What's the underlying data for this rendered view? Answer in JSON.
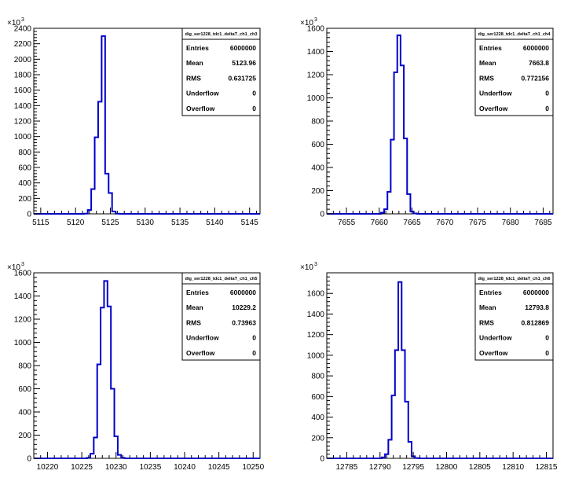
{
  "chart_data": [
    {
      "type": "histogram",
      "stats_title": "dig_ser1228_tdc1_deltaT_ch1_ch3",
      "stats": [
        {
          "label": "Entries",
          "value": "6000000"
        },
        {
          "label": "Mean",
          "value": "5123.96"
        },
        {
          "label": "RMS",
          "value": "0.631725"
        },
        {
          "label": "Underflow",
          "value": "0"
        },
        {
          "label": "Overflow",
          "value": "0"
        }
      ],
      "xlim": [
        5114,
        5146.5
      ],
      "ylim": [
        0,
        2400
      ],
      "xticks": [
        5115,
        5120,
        5125,
        5130,
        5135,
        5140,
        5145
      ],
      "yticks": [
        0,
        200,
        400,
        600,
        800,
        1000,
        1200,
        1400,
        1600,
        1800,
        2000,
        2200,
        2400
      ],
      "y_multiplier": "×10",
      "y_exponent": "3",
      "bin_width": 0.5,
      "bins": [
        {
          "x": 5121.5,
          "y": 2
        },
        {
          "x": 5122.0,
          "y": 50
        },
        {
          "x": 5122.5,
          "y": 320
        },
        {
          "x": 5123.0,
          "y": 990
        },
        {
          "x": 5123.5,
          "y": 1450
        },
        {
          "x": 5124.0,
          "y": 2300
        },
        {
          "x": 5124.5,
          "y": 520
        },
        {
          "x": 5125.0,
          "y": 270
        },
        {
          "x": 5125.5,
          "y": 30
        },
        {
          "x": 5126.0,
          "y": 3
        }
      ]
    },
    {
      "type": "histogram",
      "stats_title": "dig_ser1228_tdc1_deltaT_ch1_ch4",
      "stats": [
        {
          "label": "Entries",
          "value": "6000000"
        },
        {
          "label": "Mean",
          "value": "7663.8"
        },
        {
          "label": "RMS",
          "value": "0.772156"
        },
        {
          "label": "Underflow",
          "value": "0"
        },
        {
          "label": "Overflow",
          "value": "0"
        }
      ],
      "xlim": [
        7652,
        7686.5
      ],
      "ylim": [
        0,
        1600
      ],
      "xticks": [
        7655,
        7660,
        7665,
        7670,
        7675,
        7680,
        7685
      ],
      "yticks": [
        0,
        200,
        400,
        600,
        800,
        1000,
        1200,
        1400,
        1600
      ],
      "y_multiplier": "×10",
      "y_exponent": "3",
      "bin_width": 0.5,
      "bins": [
        {
          "x": 7660.5,
          "y": 10
        },
        {
          "x": 7661.0,
          "y": 40
        },
        {
          "x": 7661.5,
          "y": 190
        },
        {
          "x": 7662.0,
          "y": 640
        },
        {
          "x": 7662.5,
          "y": 1220
        },
        {
          "x": 7663.0,
          "y": 1540
        },
        {
          "x": 7663.5,
          "y": 1280
        },
        {
          "x": 7664.0,
          "y": 650
        },
        {
          "x": 7664.5,
          "y": 170
        },
        {
          "x": 7665.0,
          "y": 20
        },
        {
          "x": 7665.5,
          "y": 3
        }
      ]
    },
    {
      "type": "histogram",
      "stats_title": "dig_ser1228_tdc1_deltaT_ch1_ch5",
      "stats": [
        {
          "label": "Entries",
          "value": "6000000"
        },
        {
          "label": "Mean",
          "value": "10229.2"
        },
        {
          "label": "RMS",
          "value": "0.73963"
        },
        {
          "label": "Underflow",
          "value": "0"
        },
        {
          "label": "Overflow",
          "value": "0"
        }
      ],
      "xlim": [
        10218,
        10251
      ],
      "ylim": [
        0,
        1600
      ],
      "xticks": [
        10220,
        10225,
        10230,
        10235,
        10240,
        10245,
        10250
      ],
      "yticks": [
        0,
        200,
        400,
        600,
        800,
        1000,
        1200,
        1400,
        1600
      ],
      "y_multiplier": "×10",
      "y_exponent": "3",
      "bin_width": 0.5,
      "bins": [
        {
          "x": 10226.0,
          "y": 4
        },
        {
          "x": 10226.5,
          "y": 40
        },
        {
          "x": 10227.0,
          "y": 180
        },
        {
          "x": 10227.5,
          "y": 810
        },
        {
          "x": 10228.0,
          "y": 1300
        },
        {
          "x": 10228.5,
          "y": 1530
        },
        {
          "x": 10229.0,
          "y": 1310
        },
        {
          "x": 10229.5,
          "y": 600
        },
        {
          "x": 10230.0,
          "y": 190
        },
        {
          "x": 10230.5,
          "y": 30
        },
        {
          "x": 10231.0,
          "y": 4
        }
      ]
    },
    {
      "type": "histogram",
      "stats_title": "dig_ser1228_tdc1_deltaT_ch1_ch6",
      "stats": [
        {
          "label": "Entries",
          "value": "6000000"
        },
        {
          "label": "Mean",
          "value": "12793.8"
        },
        {
          "label": "RMS",
          "value": "0.812869"
        },
        {
          "label": "Underflow",
          "value": "0"
        },
        {
          "label": "Overflow",
          "value": "0"
        }
      ],
      "xlim": [
        12782,
        12816
      ],
      "ylim": [
        0,
        1800
      ],
      "xticks": [
        12785,
        12790,
        12795,
        12800,
        12805,
        12810,
        12815
      ],
      "yticks": [
        0,
        200,
        400,
        600,
        800,
        1000,
        1200,
        1400,
        1600
      ],
      "y_multiplier": "×10",
      "y_exponent": "3",
      "bin_width": 0.5,
      "bins": [
        {
          "x": 12790.5,
          "y": 10
        },
        {
          "x": 12791.0,
          "y": 40
        },
        {
          "x": 12791.5,
          "y": 180
        },
        {
          "x": 12792.0,
          "y": 610
        },
        {
          "x": 12792.5,
          "y": 1050
        },
        {
          "x": 12793.0,
          "y": 1710
        },
        {
          "x": 12793.5,
          "y": 1050
        },
        {
          "x": 12794.0,
          "y": 550
        },
        {
          "x": 12794.5,
          "y": 160
        },
        {
          "x": 12795.0,
          "y": 20
        },
        {
          "x": 12795.5,
          "y": 3
        }
      ]
    }
  ]
}
